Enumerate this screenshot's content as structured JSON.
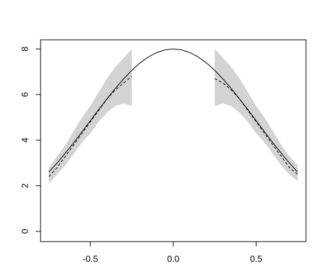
{
  "chart_data": {
    "type": "line",
    "x": [
      -0.75,
      -0.7,
      -0.65,
      -0.6,
      -0.55,
      -0.5,
      -0.45,
      -0.4,
      -0.35,
      -0.3,
      -0.25,
      -0.2,
      -0.15,
      -0.1,
      -0.05,
      0,
      0.05,
      0.1,
      0.15,
      0.2,
      0.25,
      0.3,
      0.35,
      0.4,
      0.45,
      0.5,
      0.55,
      0.6,
      0.65,
      0.7,
      0.75
    ],
    "series": [
      {
        "color": "#000000",
        "dashed": false,
        "values": [
          2.6,
          3.0,
          3.44,
          3.89,
          4.37,
          4.85,
          5.34,
          5.81,
          6.26,
          6.68,
          7.06,
          7.39,
          7.65,
          7.84,
          7.96,
          8.0,
          7.96,
          7.84,
          7.65,
          7.39,
          7.06,
          6.68,
          6.26,
          5.81,
          5.34,
          4.85,
          4.37,
          3.89,
          3.44,
          3.0,
          2.6
        ]
      },
      {
        "color": "#000000",
        "dashed": true,
        "values": [
          2.4,
          2.8,
          3.3,
          3.8,
          4.3,
          4.8,
          5.3,
          5.8,
          6.2,
          6.5,
          6.8,
          null,
          null,
          null,
          null,
          null,
          null,
          null,
          null,
          null,
          6.7,
          6.5,
          6.2,
          5.8,
          5.3,
          4.8,
          4.3,
          3.8,
          3.3,
          2.8,
          2.5
        ]
      }
    ],
    "band": {
      "color": "#d3d3d3",
      "lower": [
        2.1,
        2.5,
        2.9,
        3.4,
        3.9,
        4.3,
        4.8,
        5.2,
        5.5,
        5.6,
        5.5,
        null,
        null,
        null,
        null,
        null,
        null,
        null,
        null,
        null,
        5.5,
        5.6,
        5.5,
        5.2,
        4.8,
        4.3,
        3.9,
        3.4,
        2.9,
        2.5,
        2.2
      ],
      "upper": [
        2.8,
        3.3,
        3.8,
        4.4,
        5.0,
        5.5,
        6.1,
        6.7,
        7.2,
        7.6,
        8.0,
        null,
        null,
        null,
        null,
        null,
        null,
        null,
        null,
        null,
        8.0,
        7.6,
        7.2,
        6.7,
        6.1,
        5.5,
        5.0,
        4.4,
        3.8,
        3.3,
        2.9
      ]
    },
    "xlim": [
      -0.8,
      0.8
    ],
    "ylim": [
      -0.45,
      8.4
    ],
    "xticks": [
      -0.5,
      {
        "value": 0,
        "label": "0.0"
      },
      0.5
    ],
    "yticks": [
      0,
      2,
      4,
      6,
      8
    ]
  }
}
